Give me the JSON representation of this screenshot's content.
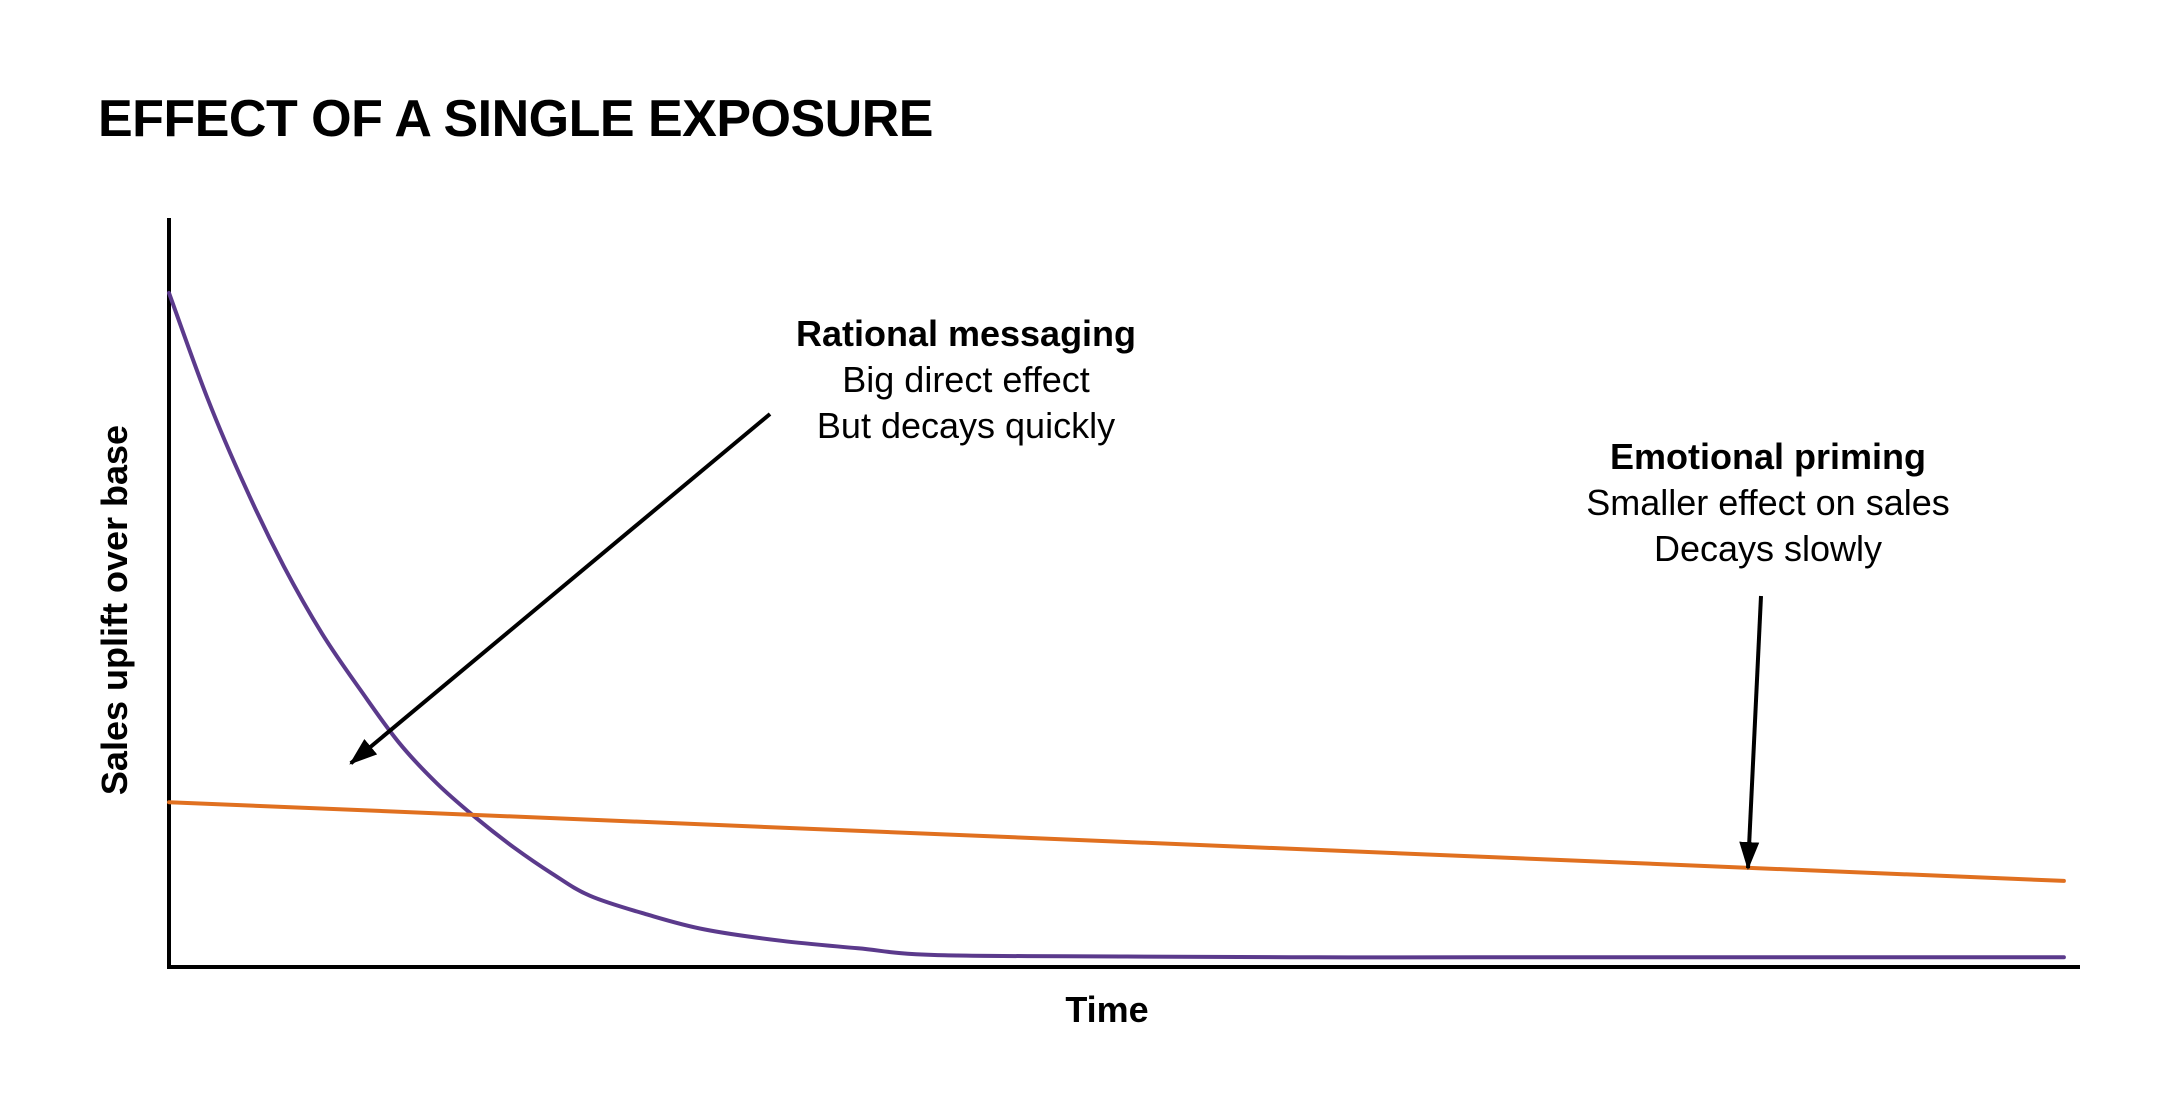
{
  "chart_data": {
    "type": "line",
    "title": "EFFECT OF A SINGLE EXPOSURE",
    "xlabel": "Time",
    "ylabel": "Sales uplift over base",
    "xlim": [
      0,
      1
    ],
    "ylim": [
      0,
      1
    ],
    "ticks_shown": false,
    "grid": false,
    "legend": "none",
    "series": [
      {
        "key": "rational",
        "color": "#5B3A8C",
        "x": [
          0,
          0.02,
          0.04,
          0.06,
          0.08,
          0.1,
          0.12,
          0.14,
          0.16,
          0.18,
          0.2,
          0.22,
          0.25,
          0.28,
          0.32,
          0.36,
          0.4,
          0.5,
          0.6,
          0.7,
          0.8,
          0.9,
          0.99
        ],
        "y": [
          0.9,
          0.76,
          0.64,
          0.535,
          0.445,
          0.37,
          0.3,
          0.245,
          0.2,
          0.16,
          0.125,
          0.095,
          0.07,
          0.05,
          0.035,
          0.025,
          0.016,
          0.014,
          0.013,
          0.013,
          0.013,
          0.013,
          0.013
        ]
      },
      {
        "key": "emotional",
        "color": "#E07020",
        "x": [
          0,
          0.99
        ],
        "y": [
          0.22,
          0.115
        ]
      }
    ],
    "annotations": [
      {
        "key": "rational",
        "heading": "Rational messaging",
        "lines": [
          "Big direct effect",
          "But decays quickly"
        ],
        "target": [
          0.095,
          0.272
        ]
      },
      {
        "key": "emotional",
        "heading": "Emotional priming",
        "lines": [
          "Smaller effect on sales",
          "Decays slowly"
        ],
        "target": [
          0.825,
          0.132
        ]
      }
    ]
  }
}
